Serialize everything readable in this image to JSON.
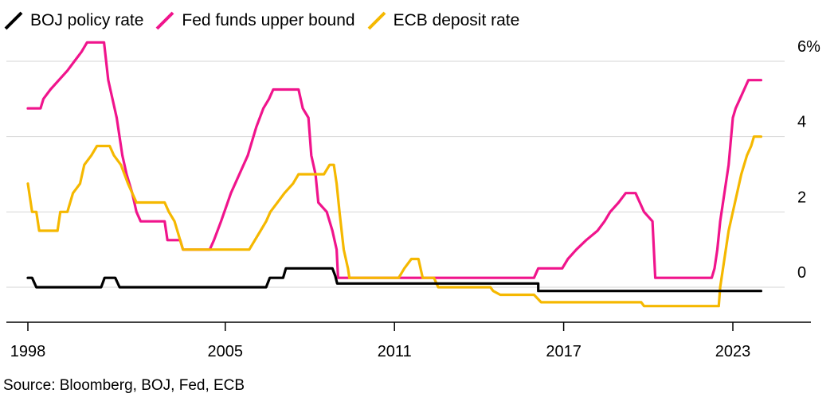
{
  "chart_data": {
    "type": "line",
    "title": "",
    "xlabel": "",
    "ylabel": "",
    "xlim": [
      1998.0,
      2025.5
    ],
    "ylim": [
      -1.0,
      6.0
    ],
    "y_ticks": [
      {
        "value": 6,
        "label": "6%"
      },
      {
        "value": 4,
        "label": "4"
      },
      {
        "value": 2,
        "label": "2"
      },
      {
        "value": 0,
        "label": "0"
      }
    ],
    "x_ticks": [
      {
        "value": 1998,
        "label": "1998"
      },
      {
        "value": 2005,
        "label": "2005"
      },
      {
        "value": 2011,
        "label": "2011"
      },
      {
        "value": 2017,
        "label": "2017"
      },
      {
        "value": 2023,
        "label": "2023"
      }
    ],
    "grid": "horizontal",
    "legend_position": "top-left",
    "series": [
      {
        "name": "BOJ policy rate",
        "color": "#000000",
        "points": [
          [
            1998.0,
            0.25
          ],
          [
            1998.15,
            0.25
          ],
          [
            1998.3,
            0.0
          ],
          [
            2000.6,
            0.0
          ],
          [
            2000.72,
            0.25
          ],
          [
            2001.1,
            0.25
          ],
          [
            2001.25,
            0.0
          ],
          [
            2006.45,
            0.0
          ],
          [
            2006.58,
            0.25
          ],
          [
            2007.05,
            0.25
          ],
          [
            2007.15,
            0.5
          ],
          [
            2008.8,
            0.5
          ],
          [
            2008.9,
            0.3
          ],
          [
            2008.97,
            0.1
          ],
          [
            2016.1,
            0.1
          ],
          [
            2016.1,
            -0.1
          ],
          [
            2024.0,
            -0.1
          ]
        ]
      },
      {
        "name": "Fed funds upper bound",
        "color": "#f0148c",
        "points": [
          [
            1998.0,
            4.75
          ],
          [
            1998.45,
            4.75
          ],
          [
            1998.55,
            5.0
          ],
          [
            1998.8,
            5.25
          ],
          [
            1999.1,
            5.5
          ],
          [
            1999.4,
            5.75
          ],
          [
            1999.65,
            6.0
          ],
          [
            1999.9,
            6.25
          ],
          [
            2000.1,
            6.5
          ],
          [
            2000.4,
            6.5
          ],
          [
            2000.7,
            6.5
          ],
          [
            2000.85,
            5.5
          ],
          [
            2001.0,
            5.0
          ],
          [
            2001.15,
            4.5
          ],
          [
            2001.35,
            3.5
          ],
          [
            2001.5,
            3.0
          ],
          [
            2001.7,
            2.5
          ],
          [
            2001.85,
            2.0
          ],
          [
            2002.0,
            1.75
          ],
          [
            2002.85,
            1.75
          ],
          [
            2002.95,
            1.25
          ],
          [
            2003.4,
            1.25
          ],
          [
            2003.5,
            1.0
          ],
          [
            2004.45,
            1.0
          ],
          [
            2004.6,
            1.25
          ],
          [
            2004.85,
            1.75
          ],
          [
            2005.2,
            2.5
          ],
          [
            2005.5,
            3.0
          ],
          [
            2005.8,
            3.5
          ],
          [
            2006.1,
            4.25
          ],
          [
            2006.35,
            4.75
          ],
          [
            2006.55,
            5.0
          ],
          [
            2006.7,
            5.25
          ],
          [
            2007.6,
            5.25
          ],
          [
            2007.75,
            4.75
          ],
          [
            2007.95,
            4.5
          ],
          [
            2008.05,
            3.5
          ],
          [
            2008.2,
            3.0
          ],
          [
            2008.3,
            2.25
          ],
          [
            2008.6,
            2.0
          ],
          [
            2008.8,
            1.5
          ],
          [
            2008.95,
            1.0
          ],
          [
            2009.0,
            0.25
          ],
          [
            2015.95,
            0.25
          ],
          [
            2016.1,
            0.5
          ],
          [
            2016.95,
            0.5
          ],
          [
            2017.15,
            0.75
          ],
          [
            2017.45,
            1.0
          ],
          [
            2017.8,
            1.25
          ],
          [
            2018.2,
            1.5
          ],
          [
            2018.45,
            1.75
          ],
          [
            2018.65,
            2.0
          ],
          [
            2018.95,
            2.25
          ],
          [
            2019.2,
            2.5
          ],
          [
            2019.55,
            2.5
          ],
          [
            2019.7,
            2.25
          ],
          [
            2019.85,
            2.0
          ],
          [
            2020.15,
            1.75
          ],
          [
            2020.25,
            0.25
          ],
          [
            2022.25,
            0.25
          ],
          [
            2022.35,
            0.5
          ],
          [
            2022.45,
            1.0
          ],
          [
            2022.55,
            1.75
          ],
          [
            2022.7,
            2.5
          ],
          [
            2022.85,
            3.25
          ],
          [
            2023.0,
            4.5
          ],
          [
            2023.1,
            4.75
          ],
          [
            2023.25,
            5.0
          ],
          [
            2023.4,
            5.25
          ],
          [
            2023.55,
            5.5
          ],
          [
            2024.0,
            5.5
          ]
        ]
      },
      {
        "name": "ECB deposit rate",
        "color": "#f5b800",
        "points": [
          [
            1998.0,
            2.75
          ],
          [
            1998.15,
            2.0
          ],
          [
            1998.3,
            2.0
          ],
          [
            1998.4,
            1.5
          ],
          [
            1999.05,
            1.5
          ],
          [
            1999.15,
            2.0
          ],
          [
            1999.4,
            2.0
          ],
          [
            1999.6,
            2.5
          ],
          [
            1999.85,
            2.75
          ],
          [
            2000.0,
            3.25
          ],
          [
            2000.25,
            3.5
          ],
          [
            2000.45,
            3.75
          ],
          [
            2000.9,
            3.75
          ],
          [
            2001.05,
            3.5
          ],
          [
            2001.3,
            3.25
          ],
          [
            2001.55,
            2.75
          ],
          [
            2001.85,
            2.25
          ],
          [
            2002.85,
            2.25
          ],
          [
            2003.0,
            2.0
          ],
          [
            2003.2,
            1.75
          ],
          [
            2003.5,
            1.0
          ],
          [
            2005.85,
            1.0
          ],
          [
            2006.05,
            1.25
          ],
          [
            2006.25,
            1.5
          ],
          [
            2006.45,
            1.75
          ],
          [
            2006.6,
            2.0
          ],
          [
            2006.85,
            2.25
          ],
          [
            2007.1,
            2.5
          ],
          [
            2007.4,
            2.75
          ],
          [
            2007.6,
            3.0
          ],
          [
            2008.5,
            3.0
          ],
          [
            2008.7,
            3.25
          ],
          [
            2008.85,
            3.25
          ],
          [
            2008.95,
            2.75
          ],
          [
            2009.05,
            2.0
          ],
          [
            2009.2,
            1.0
          ],
          [
            2009.35,
            0.5
          ],
          [
            2009.4,
            0.25
          ],
          [
            2011.15,
            0.25
          ],
          [
            2011.35,
            0.5
          ],
          [
            2011.6,
            0.75
          ],
          [
            2011.85,
            0.75
          ],
          [
            2012.0,
            0.25
          ],
          [
            2012.4,
            0.25
          ],
          [
            2012.55,
            0.0
          ],
          [
            2014.4,
            0.0
          ],
          [
            2014.5,
            -0.1
          ],
          [
            2014.75,
            -0.2
          ],
          [
            2015.95,
            -0.2
          ],
          [
            2016.2,
            -0.4
          ],
          [
            2019.75,
            -0.4
          ],
          [
            2019.85,
            -0.5
          ],
          [
            2022.5,
            -0.5
          ],
          [
            2022.55,
            0.0
          ],
          [
            2022.7,
            0.75
          ],
          [
            2022.85,
            1.5
          ],
          [
            2023.0,
            2.0
          ],
          [
            2023.15,
            2.5
          ],
          [
            2023.3,
            3.0
          ],
          [
            2023.5,
            3.5
          ],
          [
            2023.65,
            3.75
          ],
          [
            2023.75,
            4.0
          ],
          [
            2024.0,
            4.0
          ]
        ]
      }
    ],
    "source": "Source: Bloomberg, BOJ, Fed, ECB"
  }
}
